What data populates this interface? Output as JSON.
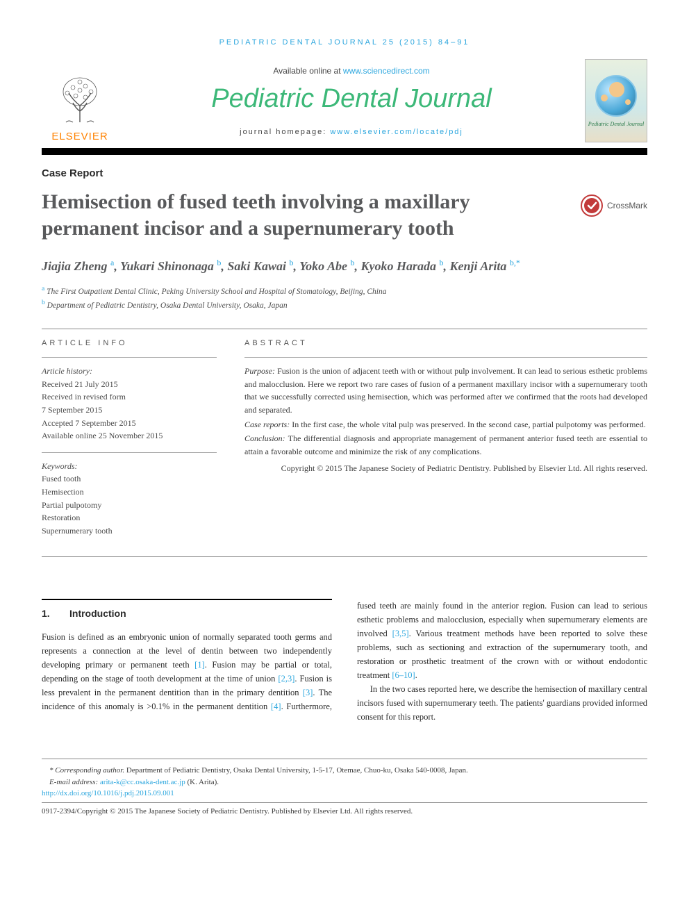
{
  "colors": {
    "link": "#2ba6de",
    "journal_green": "#3cb878",
    "elsevier_orange": "#ff8200",
    "heading_gray": "#58595b",
    "text": "#2a2a2a",
    "rule": "#888888",
    "black": "#000000"
  },
  "header": {
    "citation": "PEDIATRIC DENTAL JOURNAL 25 (2015) 84–91",
    "available_prefix": "Available online at ",
    "available_url": "www.sciencedirect.com",
    "journal_title": "Pediatric Dental Journal",
    "homepage_prefix": "journal homepage: ",
    "homepage_url": "www.elsevier.com/locate/pdj",
    "publisher_label": "ELSEVIER",
    "cover_label": "Pediatric Dental Journal"
  },
  "article": {
    "type": "Case Report",
    "title": "Hemisection of fused teeth involving a maxillary permanent incisor and a supernumerary tooth",
    "crossmark_label": "CrossMark",
    "authors_html": "Jiajia Zheng <sup>a</sup>, Yukari Shinonaga <sup>b</sup>, Saki Kawai <sup>b</sup>, Yoko Abe <sup>b</sup>, Kyoko Harada <sup>b</sup>, Kenji Arita <sup>b,</sup><sup class=\"star\">*</sup>",
    "affiliations": [
      {
        "sup": "a",
        "text": "The First Outpatient Dental Clinic, Peking University School and Hospital of Stomatology, Beijing, China"
      },
      {
        "sup": "b",
        "text": "Department of Pediatric Dentistry, Osaka Dental University, Osaka, Japan"
      }
    ]
  },
  "info": {
    "heading": "ARTICLE INFO",
    "history_label": "Article history:",
    "history": [
      "Received 21 July 2015",
      "Received in revised form",
      "7 September 2015",
      "Accepted 7 September 2015",
      "Available online 25 November 2015"
    ],
    "keywords_label": "Keywords:",
    "keywords": [
      "Fused tooth",
      "Hemisection",
      "Partial pulpotomy",
      "Restoration",
      "Supernumerary tooth"
    ]
  },
  "abstract": {
    "heading": "ABSTRACT",
    "purpose_label": "Purpose:",
    "purpose": "Fusion is the union of adjacent teeth with or without pulp involvement. It can lead to serious esthetic problems and malocclusion. Here we report two rare cases of fusion of a permanent maxillary incisor with a supernumerary tooth that we successfully corrected using hemisection, which was performed after we confirmed that the roots had developed and separated.",
    "case_label": "Case reports:",
    "case": "In the first case, the whole vital pulp was preserved. In the second case, partial pulpotomy was performed.",
    "conclusion_label": "Conclusion:",
    "conclusion": "The differential diagnosis and appropriate management of permanent anterior fused teeth are essential to attain a favorable outcome and minimize the risk of any complications.",
    "copyright": "Copyright © 2015 The Japanese Society of Pediatric Dentistry. Published by Elsevier Ltd. All rights reserved."
  },
  "body": {
    "section_num": "1.",
    "section_title": "Introduction",
    "p1_a": "Fusion is defined as an embryonic union of normally separated tooth germs and represents a connection at the level of dentin between two independently developing primary or permanent teeth ",
    "c1": "[1]",
    "p1_b": ". Fusion may be partial or total, depending on the stage of tooth development at the time of union ",
    "c2": "[2,3]",
    "p1_c": ". Fusion is less prevalent in the permanent dentition than in the primary dentition ",
    "c3": "[3]",
    "p1_d": ". The incidence of this anomaly is >0.1% in the permanent dentition ",
    "c4": "[4]",
    "p1_e": ". Furthermore, fused teeth are mainly found in the anterior region. Fusion can lead to serious esthetic problems and malocclusion, especially when supernumerary elements are involved ",
    "c5": "[3,5]",
    "p1_f": ". Various treatment methods have been reported to solve these problems, such as sectioning and extraction of the supernumerary tooth, and restoration or prosthetic treatment of the crown with or without endodontic treatment ",
    "c6": "[6–10]",
    "p1_g": ".",
    "p2": "In the two cases reported here, we describe the hemisection of maxillary central incisors fused with supernumerary teeth. The patients' guardians provided informed consent for this report."
  },
  "footer": {
    "corr_label": "* Corresponding author.",
    "corr_text": " Department of Pediatric Dentistry, Osaka Dental University, 1-5-17, Otemae, Chuo-ku, Osaka 540-0008, Japan.",
    "email_label": "E-mail address: ",
    "email": "arita-k@cc.osaka-dent.ac.jp",
    "email_suffix": " (K. Arita).",
    "doi": "http://dx.doi.org/10.1016/j.pdj.2015.09.001",
    "issn_copy": "0917-2394/Copyright © 2015 The Japanese Society of Pediatric Dentistry. Published by Elsevier Ltd. All rights reserved."
  }
}
